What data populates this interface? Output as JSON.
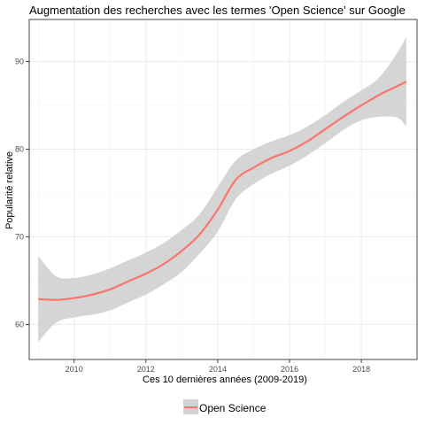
{
  "chart_data": {
    "type": "line",
    "title": "Augmentation des recherches avec les termes 'Open Science' sur Google",
    "xlabel": "Ces 10 dernières années (2009-2019)",
    "ylabel": "Popularité relative",
    "xlim": [
      2008.75,
      2019.55
    ],
    "ylim": [
      56.0,
      94.8
    ],
    "x_ticks": [
      2010,
      2012,
      2014,
      2016,
      2018
    ],
    "y_ticks": [
      60,
      70,
      80,
      90
    ],
    "grid": true,
    "legend_position": "bottom",
    "series": [
      {
        "name": "Open Science",
        "color": "#f8766d",
        "ribbon_color": "#d3d3d3",
        "x": [
          2009.0,
          2009.5,
          2010.0,
          2010.5,
          2011.0,
          2011.5,
          2012.0,
          2012.5,
          2013.0,
          2013.5,
          2014.0,
          2014.5,
          2015.0,
          2015.5,
          2016.0,
          2016.5,
          2017.0,
          2017.5,
          2018.0,
          2018.5,
          2019.0,
          2019.25
        ],
        "y": [
          62.9,
          62.8,
          63.0,
          63.4,
          64.0,
          64.9,
          65.8,
          66.9,
          68.4,
          70.3,
          73.1,
          76.5,
          77.9,
          79.0,
          79.8,
          80.9,
          82.3,
          83.7,
          85.0,
          86.2,
          87.2,
          87.7
        ],
        "lower": [
          58.0,
          60.2,
          60.8,
          61.1,
          61.6,
          62.5,
          63.4,
          64.6,
          66.0,
          68.1,
          70.6,
          74.3,
          76.0,
          77.2,
          78.1,
          79.3,
          80.7,
          82.2,
          83.3,
          83.7,
          83.6,
          82.6
        ],
        "upper": [
          67.8,
          65.5,
          65.3,
          65.7,
          66.4,
          67.3,
          68.2,
          69.3,
          70.8,
          72.6,
          75.7,
          78.7,
          80.0,
          80.9,
          81.6,
          82.6,
          83.9,
          85.4,
          86.7,
          88.2,
          91.0,
          92.8
        ]
      }
    ]
  }
}
